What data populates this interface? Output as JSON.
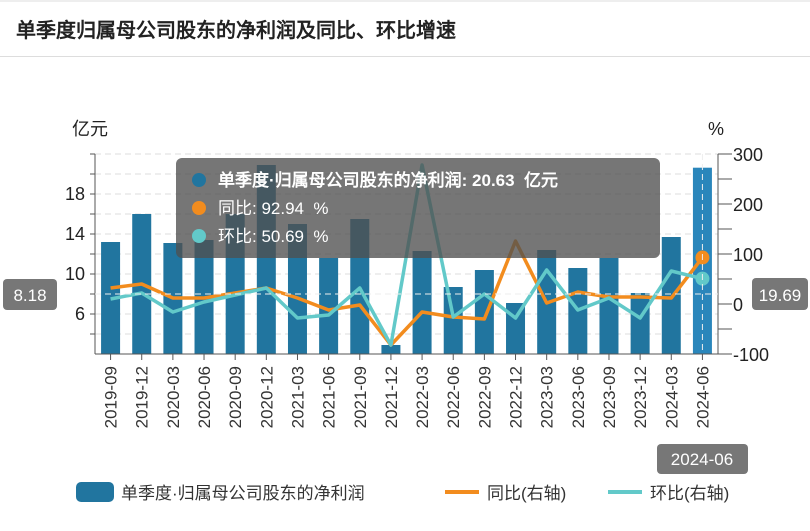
{
  "title": "单季度归属母公司股东的净利润及同比、环比增速",
  "chart_data": {
    "type": "bar+line",
    "categories": [
      "2019-09",
      "2019-12",
      "2020-03",
      "2020-06",
      "2020-09",
      "2020-12",
      "2021-03",
      "2021-06",
      "2021-09",
      "2021-12",
      "2022-03",
      "2022-06",
      "2022-09",
      "2022-12",
      "2023-03",
      "2023-06",
      "2023-09",
      "2023-12",
      "2024-03",
      "2024-06"
    ],
    "left_axis": {
      "label": "亿元",
      "range": [
        2,
        22
      ],
      "ticks": [
        6,
        10,
        14,
        18
      ]
    },
    "right_axis": {
      "label": "%",
      "range": [
        -100,
        300
      ],
      "ticks": [
        -100,
        0,
        100,
        200,
        300
      ]
    },
    "grid": true,
    "legend_position": "bottom",
    "series": [
      {
        "name": "单季度·归属母公司股东的净利润",
        "type": "bar",
        "axis": "left",
        "color": "#21759f",
        "values": [
          13.2,
          16.0,
          13.1,
          13.4,
          16.0,
          20.9,
          15.0,
          11.6,
          15.5,
          2.9,
          12.3,
          8.7,
          10.4,
          7.1,
          12.4,
          10.6,
          11.6,
          8.1,
          13.7,
          20.63
        ]
      },
      {
        "name": "同比(右轴)",
        "type": "line",
        "axis": "right",
        "color": "#f28c1e",
        "values": [
          32,
          40,
          12,
          12,
          22,
          32,
          12,
          -12,
          -2,
          -82,
          -16,
          -26,
          -30,
          126,
          2,
          24,
          14,
          14,
          12,
          92.94
        ]
      },
      {
        "name": "环比(右轴)",
        "type": "line",
        "axis": "right",
        "color": "#62c9c9",
        "values": [
          10,
          22,
          -16,
          4,
          18,
          32,
          -28,
          -22,
          32,
          -82,
          278,
          -26,
          20,
          -28,
          68,
          -12,
          12,
          -28,
          66,
          50.69
        ]
      }
    ],
    "crosshair": {
      "left_value": "8.18",
      "right_value": "19.69",
      "category": "2024-06"
    },
    "tooltip": {
      "lines": [
        {
          "label": "单季度·归属母公司股东的净利润: 20.63  亿元",
          "color": "#21759f"
        },
        {
          "label": "同比: 92.94  %",
          "color": "#f28c1e"
        },
        {
          "label": "环比: 50.69  %",
          "color": "#62c9c9"
        }
      ]
    }
  }
}
